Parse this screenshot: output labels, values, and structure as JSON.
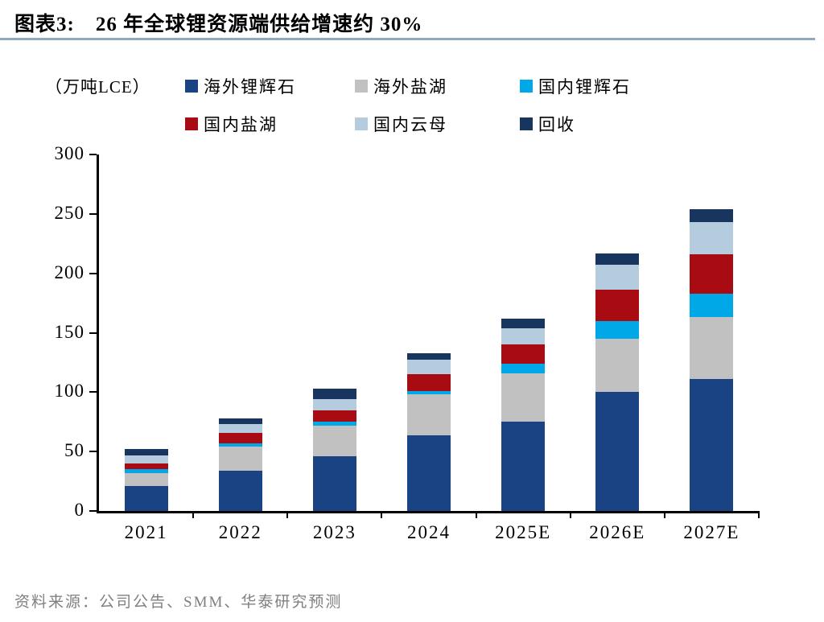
{
  "title": {
    "prefix": "图表3:",
    "text": "26 年全球锂资源端供给增速约 30%"
  },
  "unit_label": "（万吨LCE）",
  "source": "资料来源：公司公告、SMM、华泰研究预测",
  "chart_data": {
    "type": "bar",
    "stacked": true,
    "title": "26 年全球锂资源端供给增速约 30%",
    "ylabel": "（万吨LCE）",
    "categories": [
      "2021",
      "2022",
      "2023",
      "2024",
      "2025E",
      "2026E",
      "2027E"
    ],
    "series": [
      {
        "name": "海外锂辉石",
        "color": "#1a4383",
        "values": [
          21,
          34,
          46,
          64,
          75,
          100,
          111
        ]
      },
      {
        "name": "海外盐湖",
        "color": "#c1c1c1",
        "values": [
          11,
          20,
          26,
          34,
          41,
          45,
          52
        ]
      },
      {
        "name": "国内锂辉石",
        "color": "#00a8e8",
        "values": [
          3,
          3,
          3,
          3,
          8,
          15,
          20
        ]
      },
      {
        "name": "国内盐湖",
        "color": "#a80c12",
        "values": [
          5,
          9,
          10,
          14,
          16,
          26,
          33
        ]
      },
      {
        "name": "国内云母",
        "color": "#b4ccde",
        "values": [
          7,
          7,
          9,
          12,
          14,
          21,
          27
        ]
      },
      {
        "name": "回收",
        "color": "#17355f",
        "values": [
          5,
          5,
          9,
          6,
          8,
          10,
          11
        ]
      }
    ],
    "totals": [
      52,
      78,
      103,
      133,
      162,
      217,
      254
    ],
    "ylim": [
      0,
      300
    ],
    "yticks": [
      0,
      50,
      100,
      150,
      200,
      250,
      300
    ],
    "grid": false,
    "legend_position": "top",
    "legend_rows": [
      [
        0,
        1,
        2
      ],
      [
        3,
        4,
        5
      ]
    ]
  }
}
